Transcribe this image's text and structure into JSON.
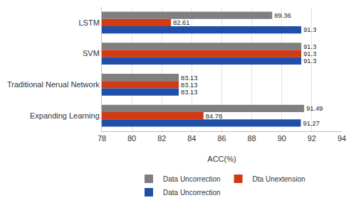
{
  "chart_data": {
    "type": "bar",
    "orientation": "horizontal",
    "categories": [
      "LSTM",
      "SVM",
      "Traditional Nerual Network",
      "Expanding Learning"
    ],
    "series": [
      {
        "name": "Data Uncorrection",
        "color": "#7f7f7f",
        "values": [
          89.36,
          91.3,
          83.13,
          91.49
        ]
      },
      {
        "name": "Dta Unextension",
        "color": "#d13a12",
        "values": [
          82.61,
          91.3,
          83.13,
          84.78
        ]
      },
      {
        "name": "Data Uncorrection",
        "color": "#1f4fa8",
        "values": [
          91.3,
          91.3,
          83.13,
          91.27
        ]
      }
    ],
    "x_label": "ACC(%)",
    "xlim": [
      78,
      94
    ],
    "xticks": [
      78,
      80,
      82,
      84,
      86,
      88,
      90,
      92,
      94
    ],
    "grid": true,
    "legend": "bottom",
    "data_labels": true
  }
}
